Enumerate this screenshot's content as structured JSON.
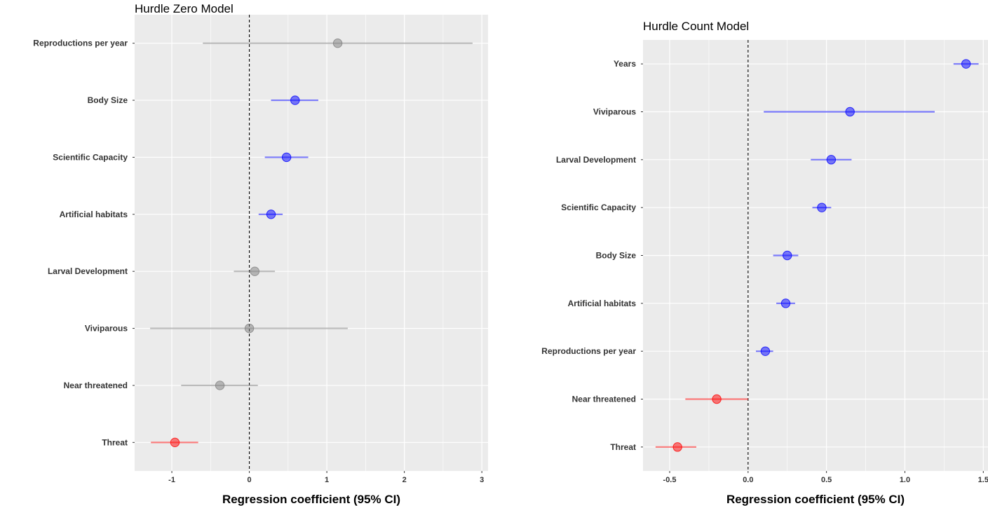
{
  "chart_data": [
    {
      "type": "scatter",
      "subtype": "forest-plot",
      "title": "Hurdle Zero Model",
      "xlabel": "Regression coefficient (95% CI)",
      "ylabel": "",
      "xlim": [
        -1.48,
        3.08
      ],
      "xticks": [
        -1,
        0,
        1,
        2,
        3
      ],
      "xtick_labels": [
        "-1",
        "0",
        "1",
        "2",
        "3"
      ],
      "reference_line": 0,
      "grid": true,
      "background": "#ebebeb",
      "categories": [
        "Reproductions per year",
        "Body Size",
        "Scientific Capacity",
        "Artificial habitats",
        "Larval Development",
        "Viviparous",
        "Near threatened",
        "Threat"
      ],
      "estimates": [
        1.14,
        0.59,
        0.48,
        0.28,
        0.07,
        0.0,
        -0.38,
        -0.96
      ],
      "ci_low": [
        -0.6,
        0.28,
        0.2,
        0.12,
        -0.2,
        -1.28,
        -0.88,
        -1.27
      ],
      "ci_high": [
        2.88,
        0.89,
        0.76,
        0.43,
        0.33,
        1.27,
        0.11,
        -0.66
      ],
      "groups": [
        "ns",
        "positive",
        "positive",
        "positive",
        "ns",
        "ns",
        "ns",
        "negative"
      ]
    },
    {
      "type": "scatter",
      "subtype": "forest-plot",
      "title": "Hurdle Count Model",
      "xlabel": "Regression coefficient (95% CI)",
      "ylabel": "",
      "xlim": [
        -0.67,
        1.53
      ],
      "xticks": [
        -0.5,
        0.0,
        0.5,
        1.0,
        1.5
      ],
      "xtick_labels": [
        "-0.5",
        "0.0",
        "0.5",
        "1.0",
        "1.5"
      ],
      "reference_line": 0,
      "grid": true,
      "background": "#ebebeb",
      "categories": [
        "Years",
        "Viviparous",
        "Larval Development",
        "Scientific Capacity",
        "Body Size",
        "Artificial habitats",
        "Reproductions per year",
        "Near threatened",
        "Threat"
      ],
      "estimates": [
        1.39,
        0.65,
        0.53,
        0.47,
        0.25,
        0.24,
        0.11,
        -0.2,
        -0.45
      ],
      "ci_low": [
        1.31,
        0.1,
        0.4,
        0.41,
        0.16,
        0.18,
        0.05,
        -0.4,
        -0.59
      ],
      "ci_high": [
        1.47,
        1.19,
        0.66,
        0.53,
        0.32,
        0.3,
        0.16,
        0.0,
        -0.33
      ],
      "groups": [
        "positive",
        "positive",
        "positive",
        "positive",
        "positive",
        "positive",
        "positive",
        "negative",
        "negative"
      ]
    }
  ],
  "colors": {
    "positive": "#0000ff",
    "ns": "#808080",
    "negative": "#ff0000",
    "panel_background": "#ebebeb",
    "grid": "#ffffff",
    "reference_line": "#000000"
  }
}
